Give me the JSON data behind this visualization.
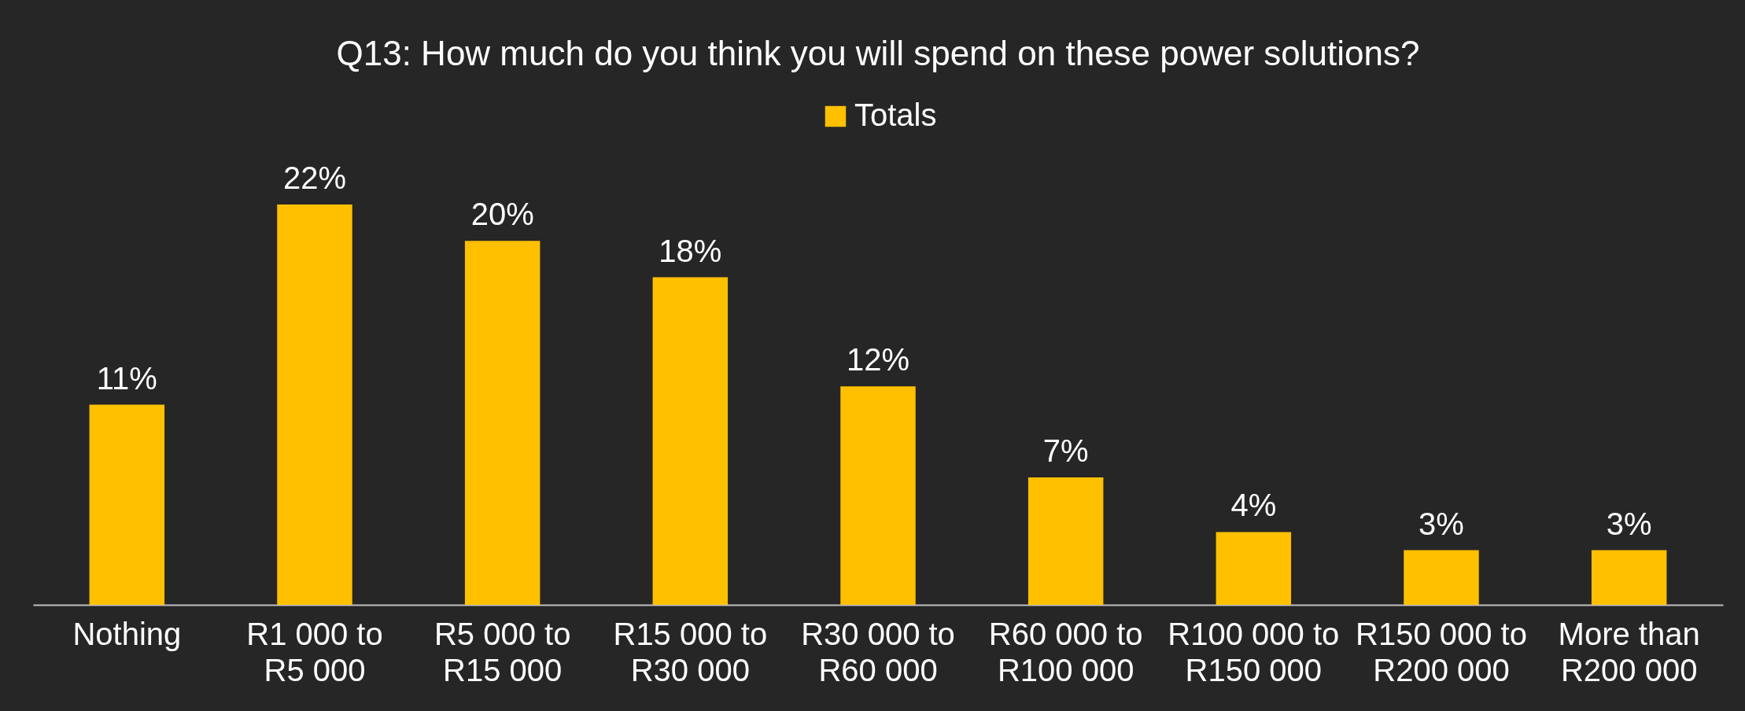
{
  "chart_data": {
    "type": "bar",
    "title": "Q13: How much do you think you will spend on these power solutions?",
    "categories": [
      "Nothing",
      "R1 000 to R5 000",
      "R5 000 to R15 000",
      "R15 000 to R30 000",
      "R30 000 to R60 000",
      "R60 000 to R100 000",
      "R100 000 to R150 000",
      "R150 000 to R200 000",
      "More than R200 000"
    ],
    "series": [
      {
        "name": "Totals",
        "color": "#ffc000",
        "values": [
          11,
          22,
          20,
          18,
          12,
          7,
          4,
          3,
          3
        ],
        "value_labels": [
          "11%",
          "22%",
          "20%",
          "18%",
          "12%",
          "7%",
          "4%",
          "3%",
          "3%"
        ]
      }
    ],
    "legend": "top"
  }
}
